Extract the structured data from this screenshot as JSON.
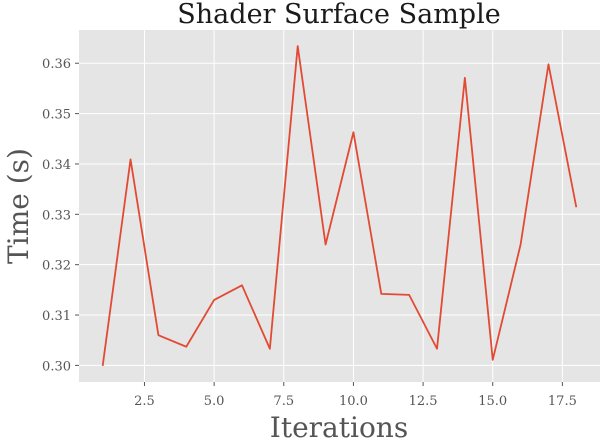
{
  "chart_data": {
    "type": "line",
    "title": "Shader Surface Sample",
    "xlabel": "Iterations",
    "ylabel": "Time (s)",
    "xlim": [
      0.15,
      18.85
    ],
    "ylim": [
      0.2967,
      0.3666
    ],
    "xticks": [
      2.5,
      5.0,
      7.5,
      10.0,
      12.5,
      15.0,
      17.5
    ],
    "xtick_labels": [
      "2.5",
      "5.0",
      "7.5",
      "10.0",
      "12.5",
      "15.0",
      "17.5"
    ],
    "yticks": [
      0.3,
      0.31,
      0.32,
      0.33,
      0.34,
      0.35,
      0.36
    ],
    "ytick_labels": [
      "0.30",
      "0.31",
      "0.32",
      "0.33",
      "0.34",
      "0.35",
      "0.36"
    ],
    "grid": true,
    "background": "#e5e5e5",
    "series": [
      {
        "color": "#e24a33",
        "x": [
          1,
          2,
          3,
          4,
          5,
          6,
          7,
          8,
          9,
          10,
          11,
          12,
          13,
          14,
          15,
          16,
          17,
          18
        ],
        "y": [
          0.2999,
          0.3409,
          0.306,
          0.3037,
          0.313,
          0.3159,
          0.3033,
          0.3634,
          0.324,
          0.3463,
          0.3142,
          0.314,
          0.3033,
          0.3571,
          0.3011,
          0.324,
          0.3598,
          0.3314
        ]
      }
    ]
  }
}
